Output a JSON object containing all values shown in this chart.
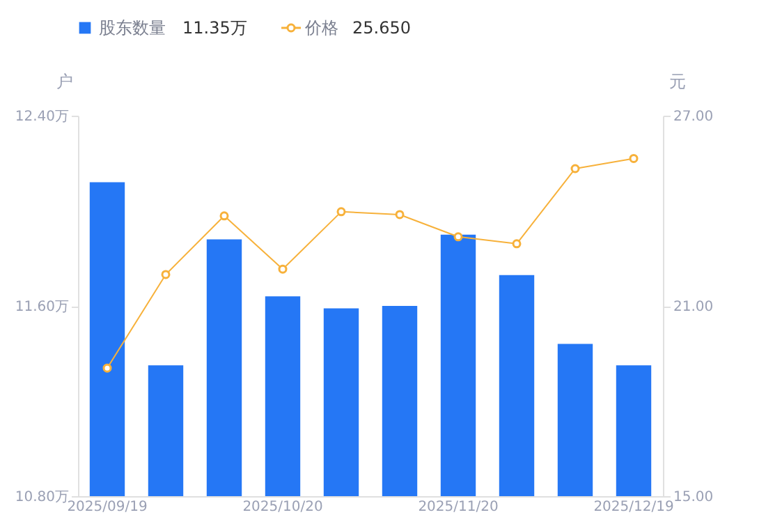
{
  "chart_data": {
    "type": "bar",
    "categories": [
      "2025/09/19",
      null,
      null,
      "2025/10/20",
      null,
      null,
      "2025/11/20",
      null,
      null,
      "2025/12/19"
    ],
    "series": [
      {
        "name": "股东数量",
        "color": "#2577f5",
        "values": [
          12.12,
          11.35,
          11.88,
          11.64,
          11.59,
          11.6,
          11.9,
          11.73,
          11.44,
          11.35
        ]
      },
      {
        "name": "价格",
        "type": "line",
        "axis": "y2",
        "color": "#f7b13a",
        "marker": "circle",
        "line_style": "solid",
        "values": [
          19.04,
          21.99,
          23.84,
          22.16,
          23.97,
          23.88,
          23.18,
          22.96,
          25.33,
          25.65
        ]
      }
    ],
    "annotations": [
      "11.35万",
      "25.650"
    ],
    "ylabel": "户",
    "y2label": "元",
    "ylim": [
      10.8,
      12.4
    ],
    "yticks": [
      {
        "value": 10.8,
        "label": "10.80万"
      },
      {
        "value": 11.6,
        "label": "11.60万"
      },
      {
        "value": 12.4,
        "label": "12.40万"
      }
    ],
    "y2lim": [
      15,
      27
    ],
    "y2ticks": [
      {
        "value": 15,
        "label": "15.00"
      },
      {
        "value": 21,
        "label": "21.00"
      },
      {
        "value": 27,
        "label": "27.00"
      }
    ],
    "grid": false,
    "legend": "top left"
  }
}
